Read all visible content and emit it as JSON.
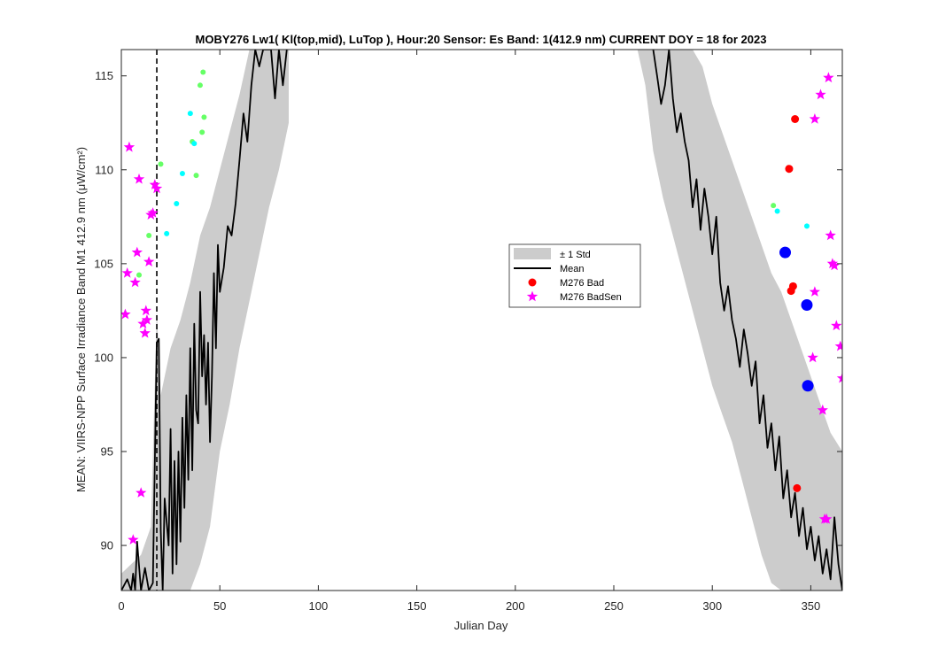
{
  "chart_data": {
    "type": "line",
    "title": "MOBY276   Lw1( Kl(top,mid), LuTop ),   Hour:20 Sensor: Es Band: 1(412.9 nm)   CURRENT DOY = 18 for 2023",
    "xlabel": "Julian Day",
    "ylabel": "MEAN: VIIRS-NPP Surface Irradiance Band M1 412.9 nm (μW/cm²)",
    "xlim": [
      0,
      366
    ],
    "ylim": [
      87.6,
      116.4
    ],
    "x_ticks": [
      0,
      50,
      100,
      150,
      200,
      250,
      300,
      350
    ],
    "y_ticks": [
      90,
      95,
      100,
      105,
      110,
      115
    ],
    "current_doy": 18,
    "legend": {
      "placement": "center-right",
      "entries": [
        "± 1 Std",
        "Mean",
        "M276 Bad",
        "M276 BadSen"
      ]
    },
    "colors": {
      "std_band": "#cccccc",
      "mean": "#000000",
      "bad": "#ff0000",
      "badsen": "#ff00ff",
      "cyan": "#00ffff",
      "green": "#66ff66",
      "blue": "#0000ff"
    },
    "mean": {
      "segment1": {
        "x": [
          0,
          3,
          5,
          6,
          7,
          8,
          10,
          12,
          14,
          16,
          18,
          19,
          20,
          21,
          22,
          24,
          25,
          26,
          27,
          28,
          29,
          30,
          31,
          32,
          33,
          34,
          35,
          36,
          37,
          38,
          39,
          40,
          41,
          42,
          43,
          44,
          45,
          46,
          47,
          48,
          49,
          50,
          52,
          54,
          56,
          58,
          60,
          62,
          64,
          66,
          68,
          70,
          72,
          74,
          76,
          78,
          80,
          82,
          84
        ],
        "y": [
          87.6,
          88.2,
          87.6,
          88.5,
          87.6,
          90.2,
          87.6,
          88.8,
          87.6,
          88.0,
          100.8,
          101.0,
          90.8,
          87.6,
          92.5,
          90.0,
          96.2,
          88.5,
          94.5,
          89.0,
          95.0,
          90.2,
          96.8,
          92.0,
          98.0,
          93.5,
          100.5,
          94.0,
          101.8,
          97.2,
          96.5,
          103.5,
          99.0,
          101.2,
          97.5,
          100.8,
          95.5,
          99.0,
          104.5,
          100.5,
          106.0,
          103.5,
          104.8,
          107.0,
          106.5,
          108.2,
          110.5,
          113.0,
          111.5,
          114.5,
          116.4,
          115.5,
          116.4,
          116.4,
          116.4,
          113.8,
          116.4,
          114.5,
          116.4
        ]
      },
      "segment2": {
        "x": [
          270,
          272,
          274,
          276,
          278,
          280,
          282,
          284,
          286,
          288,
          290,
          292,
          294,
          296,
          298,
          300,
          302,
          304,
          306,
          308,
          310,
          312,
          314,
          316,
          318,
          320,
          322,
          324,
          326,
          328,
          330,
          332,
          334,
          336,
          338,
          340,
          342,
          344,
          346,
          348,
          350,
          352,
          354,
          356,
          358,
          360,
          362,
          364,
          366
        ],
        "y": [
          116.4,
          115.0,
          113.5,
          114.5,
          116.4,
          113.8,
          112.0,
          113.0,
          111.5,
          110.5,
          108.0,
          109.5,
          106.8,
          109.0,
          107.5,
          105.5,
          107.5,
          104.0,
          102.5,
          103.8,
          102.0,
          101.0,
          99.5,
          101.5,
          100.2,
          98.5,
          99.8,
          96.5,
          98.0,
          95.2,
          96.5,
          94.0,
          95.8,
          92.5,
          94.0,
          91.5,
          92.8,
          90.5,
          92.0,
          89.8,
          91.0,
          89.2,
          90.5,
          88.5,
          89.8,
          88.2,
          91.5,
          89.0,
          87.6
        ]
      }
    },
    "std_band": {
      "segment1": {
        "x": [
          0,
          5,
          10,
          15,
          18,
          20,
          25,
          30,
          35,
          40,
          45,
          50,
          55,
          60,
          65,
          70,
          75,
          80,
          85
        ],
        "upper": [
          88.5,
          89.0,
          89.5,
          91.0,
          102.5,
          98.0,
          100.5,
          102.0,
          104.0,
          106.5,
          108.0,
          110.0,
          112.0,
          114.0,
          116.4,
          116.4,
          116.4,
          116.4,
          116.4
        ],
        "lower": [
          87.6,
          87.6,
          87.6,
          87.6,
          87.6,
          87.6,
          87.6,
          87.6,
          87.6,
          89.0,
          91.0,
          95.0,
          97.5,
          100.5,
          103.0,
          105.5,
          108.0,
          110.0,
          112.5
        ]
      },
      "segment2": {
        "x": [
          262,
          266,
          270,
          275,
          280,
          285,
          290,
          295,
          300,
          305,
          310,
          315,
          320,
          325,
          330,
          335,
          340,
          345,
          350,
          355,
          360,
          366
        ],
        "upper": [
          116.4,
          116.4,
          116.4,
          116.4,
          116.4,
          116.4,
          116.4,
          115.5,
          113.5,
          112.0,
          110.5,
          109.0,
          107.5,
          106.0,
          104.5,
          103.5,
          102.0,
          100.5,
          99.0,
          97.5,
          96.0,
          95.0
        ],
        "lower": [
          116.4,
          114.5,
          111.0,
          108.5,
          106.5,
          104.5,
          102.5,
          100.5,
          98.5,
          97.0,
          95.5,
          93.5,
          91.5,
          89.5,
          88.0,
          87.6,
          87.6,
          87.6,
          87.6,
          87.6,
          87.6,
          87.6
        ]
      }
    },
    "bad": {
      "x": [
        339,
        340,
        341,
        342,
        343
      ],
      "y": [
        110.05,
        103.55,
        103.8,
        112.7,
        93.05
      ]
    },
    "badsen": {
      "x": [
        2,
        3,
        4,
        6,
        7,
        8,
        9,
        10,
        11,
        12,
        12.5,
        13,
        14,
        15,
        16,
        17,
        18,
        352,
        355,
        357,
        359,
        360,
        361,
        362,
        365,
        366,
        351,
        352,
        356,
        358,
        363
      ],
      "y": [
        102.3,
        104.5,
        111.2,
        90.3,
        104.0,
        105.6,
        109.5,
        92.8,
        101.8,
        101.3,
        102.5,
        102.0,
        105.1,
        107.6,
        107.7,
        109.2,
        109.0,
        112.7,
        114.0,
        91.4,
        114.9,
        106.5,
        105.0,
        104.9,
        100.6,
        98.9,
        100.0,
        103.5,
        97.2,
        91.4,
        101.7
      ]
    },
    "cyan": {
      "x": [
        23,
        28,
        31,
        35,
        37,
        333,
        348
      ],
      "y": [
        106.6,
        108.2,
        109.8,
        113.0,
        111.4,
        107.8,
        107.0
      ]
    },
    "green": {
      "x": [
        9,
        14,
        20,
        36,
        38,
        40,
        41,
        41.5,
        42,
        331
      ],
      "y": [
        104.4,
        106.5,
        110.3,
        111.5,
        109.7,
        114.5,
        112.0,
        115.2,
        112.8,
        108.1
      ]
    },
    "blue": {
      "x": [
        337,
        348,
        348.5
      ],
      "y": [
        105.6,
        102.8,
        98.5
      ]
    }
  }
}
